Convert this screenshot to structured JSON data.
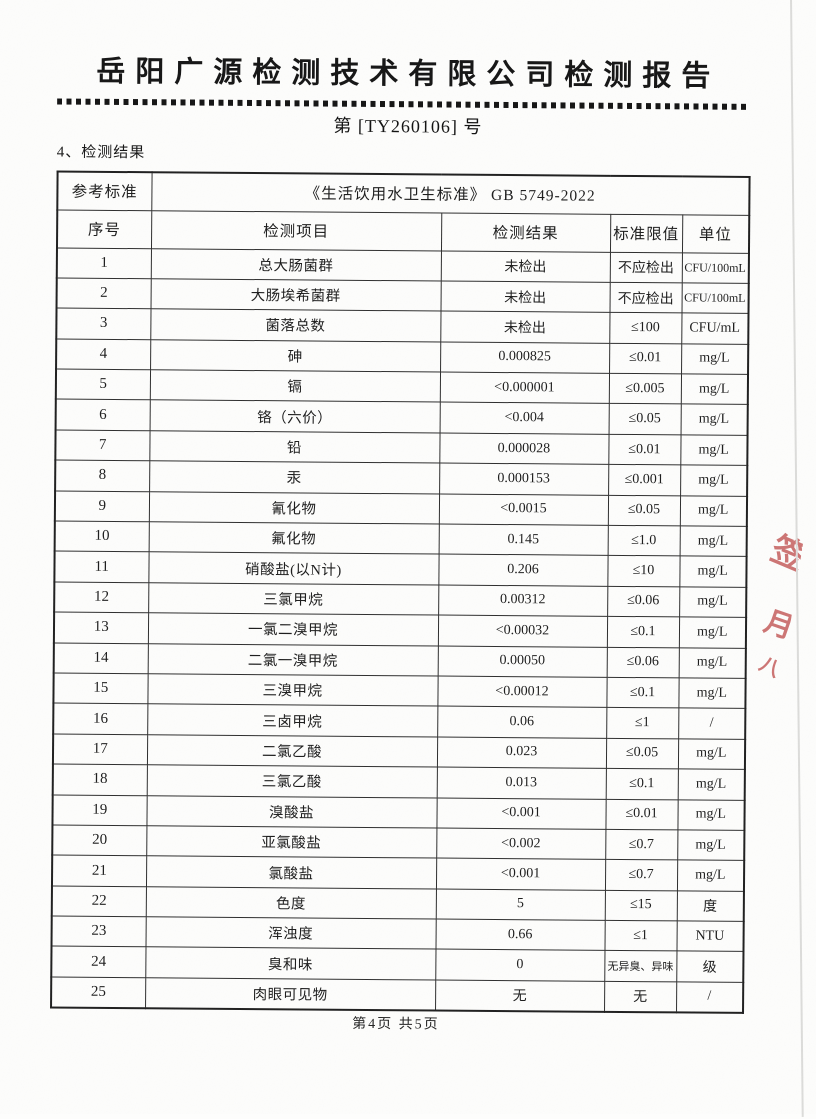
{
  "document": {
    "title": "岳阳广源检测技术有限公司检测报告",
    "report_number": "第 [TY260106] 号",
    "section_heading": "4、检测结果",
    "page_footer": "第4页 共5页"
  },
  "table": {
    "reference_label": "参考标准",
    "reference_value": "《生活饮用水卫生标准》 GB 5749-2022",
    "columns": [
      "序号",
      "检测项目",
      "检测结果",
      "标准限值",
      "单位"
    ],
    "rows": [
      {
        "no": "1",
        "item": "总大肠菌群",
        "result": "未检出",
        "limit": "不应检出",
        "unit": "CFU/100mL"
      },
      {
        "no": "2",
        "item": "大肠埃希菌群",
        "result": "未检出",
        "limit": "不应检出",
        "unit": "CFU/100mL"
      },
      {
        "no": "3",
        "item": "菌落总数",
        "result": "未检出",
        "limit": "≤100",
        "unit": "CFU/mL"
      },
      {
        "no": "4",
        "item": "砷",
        "result": "0.000825",
        "limit": "≤0.01",
        "unit": "mg/L"
      },
      {
        "no": "5",
        "item": "镉",
        "result": "<0.000001",
        "limit": "≤0.005",
        "unit": "mg/L"
      },
      {
        "no": "6",
        "item": "铬（六价）",
        "result": "<0.004",
        "limit": "≤0.05",
        "unit": "mg/L"
      },
      {
        "no": "7",
        "item": "铅",
        "result": "0.000028",
        "limit": "≤0.01",
        "unit": "mg/L"
      },
      {
        "no": "8",
        "item": "汞",
        "result": "0.000153",
        "limit": "≤0.001",
        "unit": "mg/L"
      },
      {
        "no": "9",
        "item": "氰化物",
        "result": "<0.0015",
        "limit": "≤0.05",
        "unit": "mg/L"
      },
      {
        "no": "10",
        "item": "氟化物",
        "result": "0.145",
        "limit": "≤1.0",
        "unit": "mg/L"
      },
      {
        "no": "11",
        "item": "硝酸盐(以N计)",
        "result": "0.206",
        "limit": "≤10",
        "unit": "mg/L"
      },
      {
        "no": "12",
        "item": "三氯甲烷",
        "result": "0.00312",
        "limit": "≤0.06",
        "unit": "mg/L"
      },
      {
        "no": "13",
        "item": "一氯二溴甲烷",
        "result": "<0.00032",
        "limit": "≤0.1",
        "unit": "mg/L"
      },
      {
        "no": "14",
        "item": "二氯一溴甲烷",
        "result": "0.00050",
        "limit": "≤0.06",
        "unit": "mg/L"
      },
      {
        "no": "15",
        "item": "三溴甲烷",
        "result": "<0.00012",
        "limit": "≤0.1",
        "unit": "mg/L"
      },
      {
        "no": "16",
        "item": "三卤甲烷",
        "result": "0.06",
        "limit": "≤1",
        "unit": "/"
      },
      {
        "no": "17",
        "item": "二氯乙酸",
        "result": "0.023",
        "limit": "≤0.05",
        "unit": "mg/L"
      },
      {
        "no": "18",
        "item": "三氯乙酸",
        "result": "0.013",
        "limit": "≤0.1",
        "unit": "mg/L"
      },
      {
        "no": "19",
        "item": "溴酸盐",
        "result": "<0.001",
        "limit": "≤0.01",
        "unit": "mg/L"
      },
      {
        "no": "20",
        "item": "亚氯酸盐",
        "result": "<0.002",
        "limit": "≤0.7",
        "unit": "mg/L"
      },
      {
        "no": "21",
        "item": "氯酸盐",
        "result": "<0.001",
        "limit": "≤0.7",
        "unit": "mg/L"
      },
      {
        "no": "22",
        "item": "色度",
        "result": "5",
        "limit": "≤15",
        "unit": "度"
      },
      {
        "no": "23",
        "item": "浑浊度",
        "result": "0.66",
        "limit": "≤1",
        "unit": "NTU"
      },
      {
        "no": "24",
        "item": "臭和味",
        "result": "0",
        "limit": "无异臭、异味",
        "unit": "级"
      },
      {
        "no": "25",
        "item": "肉眼可见物",
        "result": "无",
        "limit": "无",
        "unit": "/"
      }
    ]
  },
  "stamp": {
    "color": "#c0504e",
    "fragments": [
      "签",
      "月",
      "八"
    ]
  },
  "colors": {
    "ink": "#1c1c1c",
    "paper": "#fdfdfc",
    "edge_line": "#dcdcda",
    "stamp_red": "#c0504e"
  }
}
